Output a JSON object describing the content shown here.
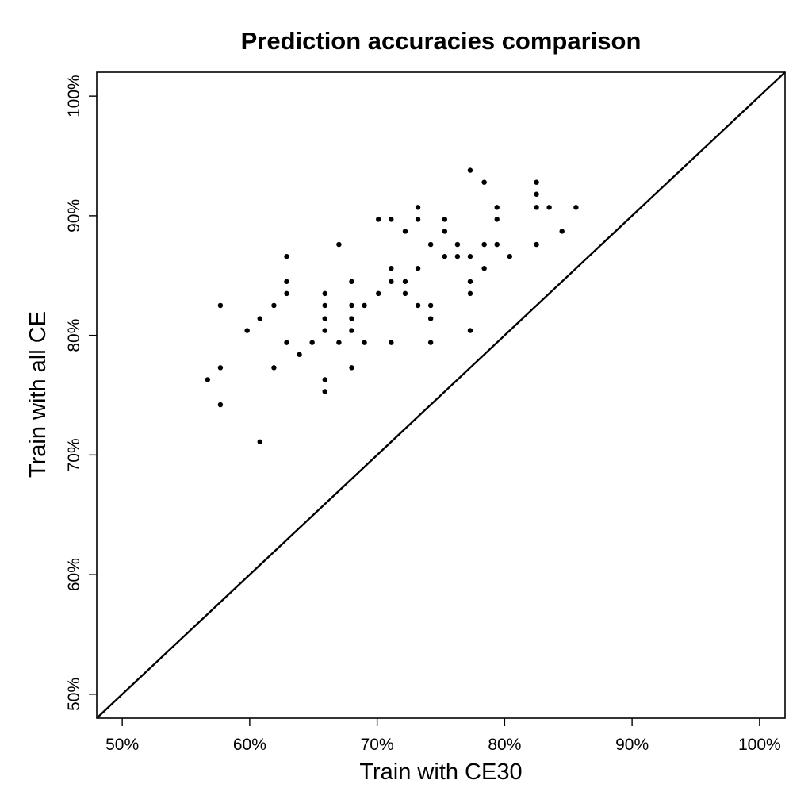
{
  "chart_data": {
    "type": "scatter",
    "title": "Prediction accuracies comparison",
    "xlabel": "Train with CE30",
    "ylabel": "Train with all CE",
    "xlim": [
      48,
      102
    ],
    "ylim": [
      48,
      102
    ],
    "x_ticks": [
      50,
      60,
      70,
      80,
      90,
      100
    ],
    "y_ticks": [
      50,
      60,
      70,
      80,
      90,
      100
    ],
    "x_tick_labels": [
      "50%",
      "60%",
      "70%",
      "80%",
      "90%",
      "100%"
    ],
    "y_tick_labels": [
      "50%",
      "60%",
      "70%",
      "80%",
      "90%",
      "100%"
    ],
    "reference_line": "y = x",
    "grid": false,
    "points": [
      [
        56.7,
        76.3
      ],
      [
        57.7,
        82.5
      ],
      [
        57.7,
        77.3
      ],
      [
        57.7,
        74.2
      ],
      [
        59.8,
        80.4
      ],
      [
        60.8,
        81.4
      ],
      [
        60.8,
        71.1
      ],
      [
        61.9,
        82.5
      ],
      [
        61.9,
        77.3
      ],
      [
        62.9,
        86.6
      ],
      [
        62.9,
        84.5
      ],
      [
        62.9,
        83.5
      ],
      [
        62.9,
        79.4
      ],
      [
        63.9,
        78.4
      ],
      [
        64.9,
        79.4
      ],
      [
        65.9,
        83.5
      ],
      [
        65.9,
        82.5
      ],
      [
        65.9,
        81.4
      ],
      [
        65.9,
        80.4
      ],
      [
        65.9,
        76.3
      ],
      [
        65.9,
        75.3
      ],
      [
        67.0,
        87.6
      ],
      [
        67.0,
        79.4
      ],
      [
        68.0,
        84.5
      ],
      [
        68.0,
        82.5
      ],
      [
        68.0,
        81.4
      ],
      [
        68.0,
        80.4
      ],
      [
        68.0,
        77.3
      ],
      [
        69.0,
        82.5
      ],
      [
        69.0,
        79.4
      ],
      [
        70.1,
        89.7
      ],
      [
        70.1,
        83.5
      ],
      [
        71.1,
        89.7
      ],
      [
        71.1,
        85.6
      ],
      [
        71.1,
        84.5
      ],
      [
        71.1,
        79.4
      ],
      [
        72.2,
        88.7
      ],
      [
        72.2,
        84.5
      ],
      [
        72.2,
        83.5
      ],
      [
        73.2,
        90.7
      ],
      [
        73.2,
        89.7
      ],
      [
        73.2,
        85.6
      ],
      [
        73.2,
        82.5
      ],
      [
        74.2,
        87.6
      ],
      [
        74.2,
        82.5
      ],
      [
        74.2,
        81.4
      ],
      [
        74.2,
        79.4
      ],
      [
        75.3,
        89.7
      ],
      [
        75.3,
        88.7
      ],
      [
        75.3,
        86.6
      ],
      [
        76.3,
        87.6
      ],
      [
        76.3,
        86.6
      ],
      [
        77.3,
        93.8
      ],
      [
        77.3,
        86.6
      ],
      [
        77.3,
        84.5
      ],
      [
        77.3,
        83.5
      ],
      [
        77.3,
        80.4
      ],
      [
        78.4,
        92.8
      ],
      [
        78.4,
        87.6
      ],
      [
        78.4,
        85.6
      ],
      [
        79.4,
        90.7
      ],
      [
        79.4,
        89.7
      ],
      [
        79.4,
        87.6
      ],
      [
        80.4,
        86.6
      ],
      [
        82.5,
        92.8
      ],
      [
        82.5,
        91.8
      ],
      [
        82.5,
        90.7
      ],
      [
        82.5,
        87.6
      ],
      [
        83.5,
        90.7
      ],
      [
        84.5,
        88.7
      ],
      [
        85.6,
        90.7
      ]
    ]
  }
}
